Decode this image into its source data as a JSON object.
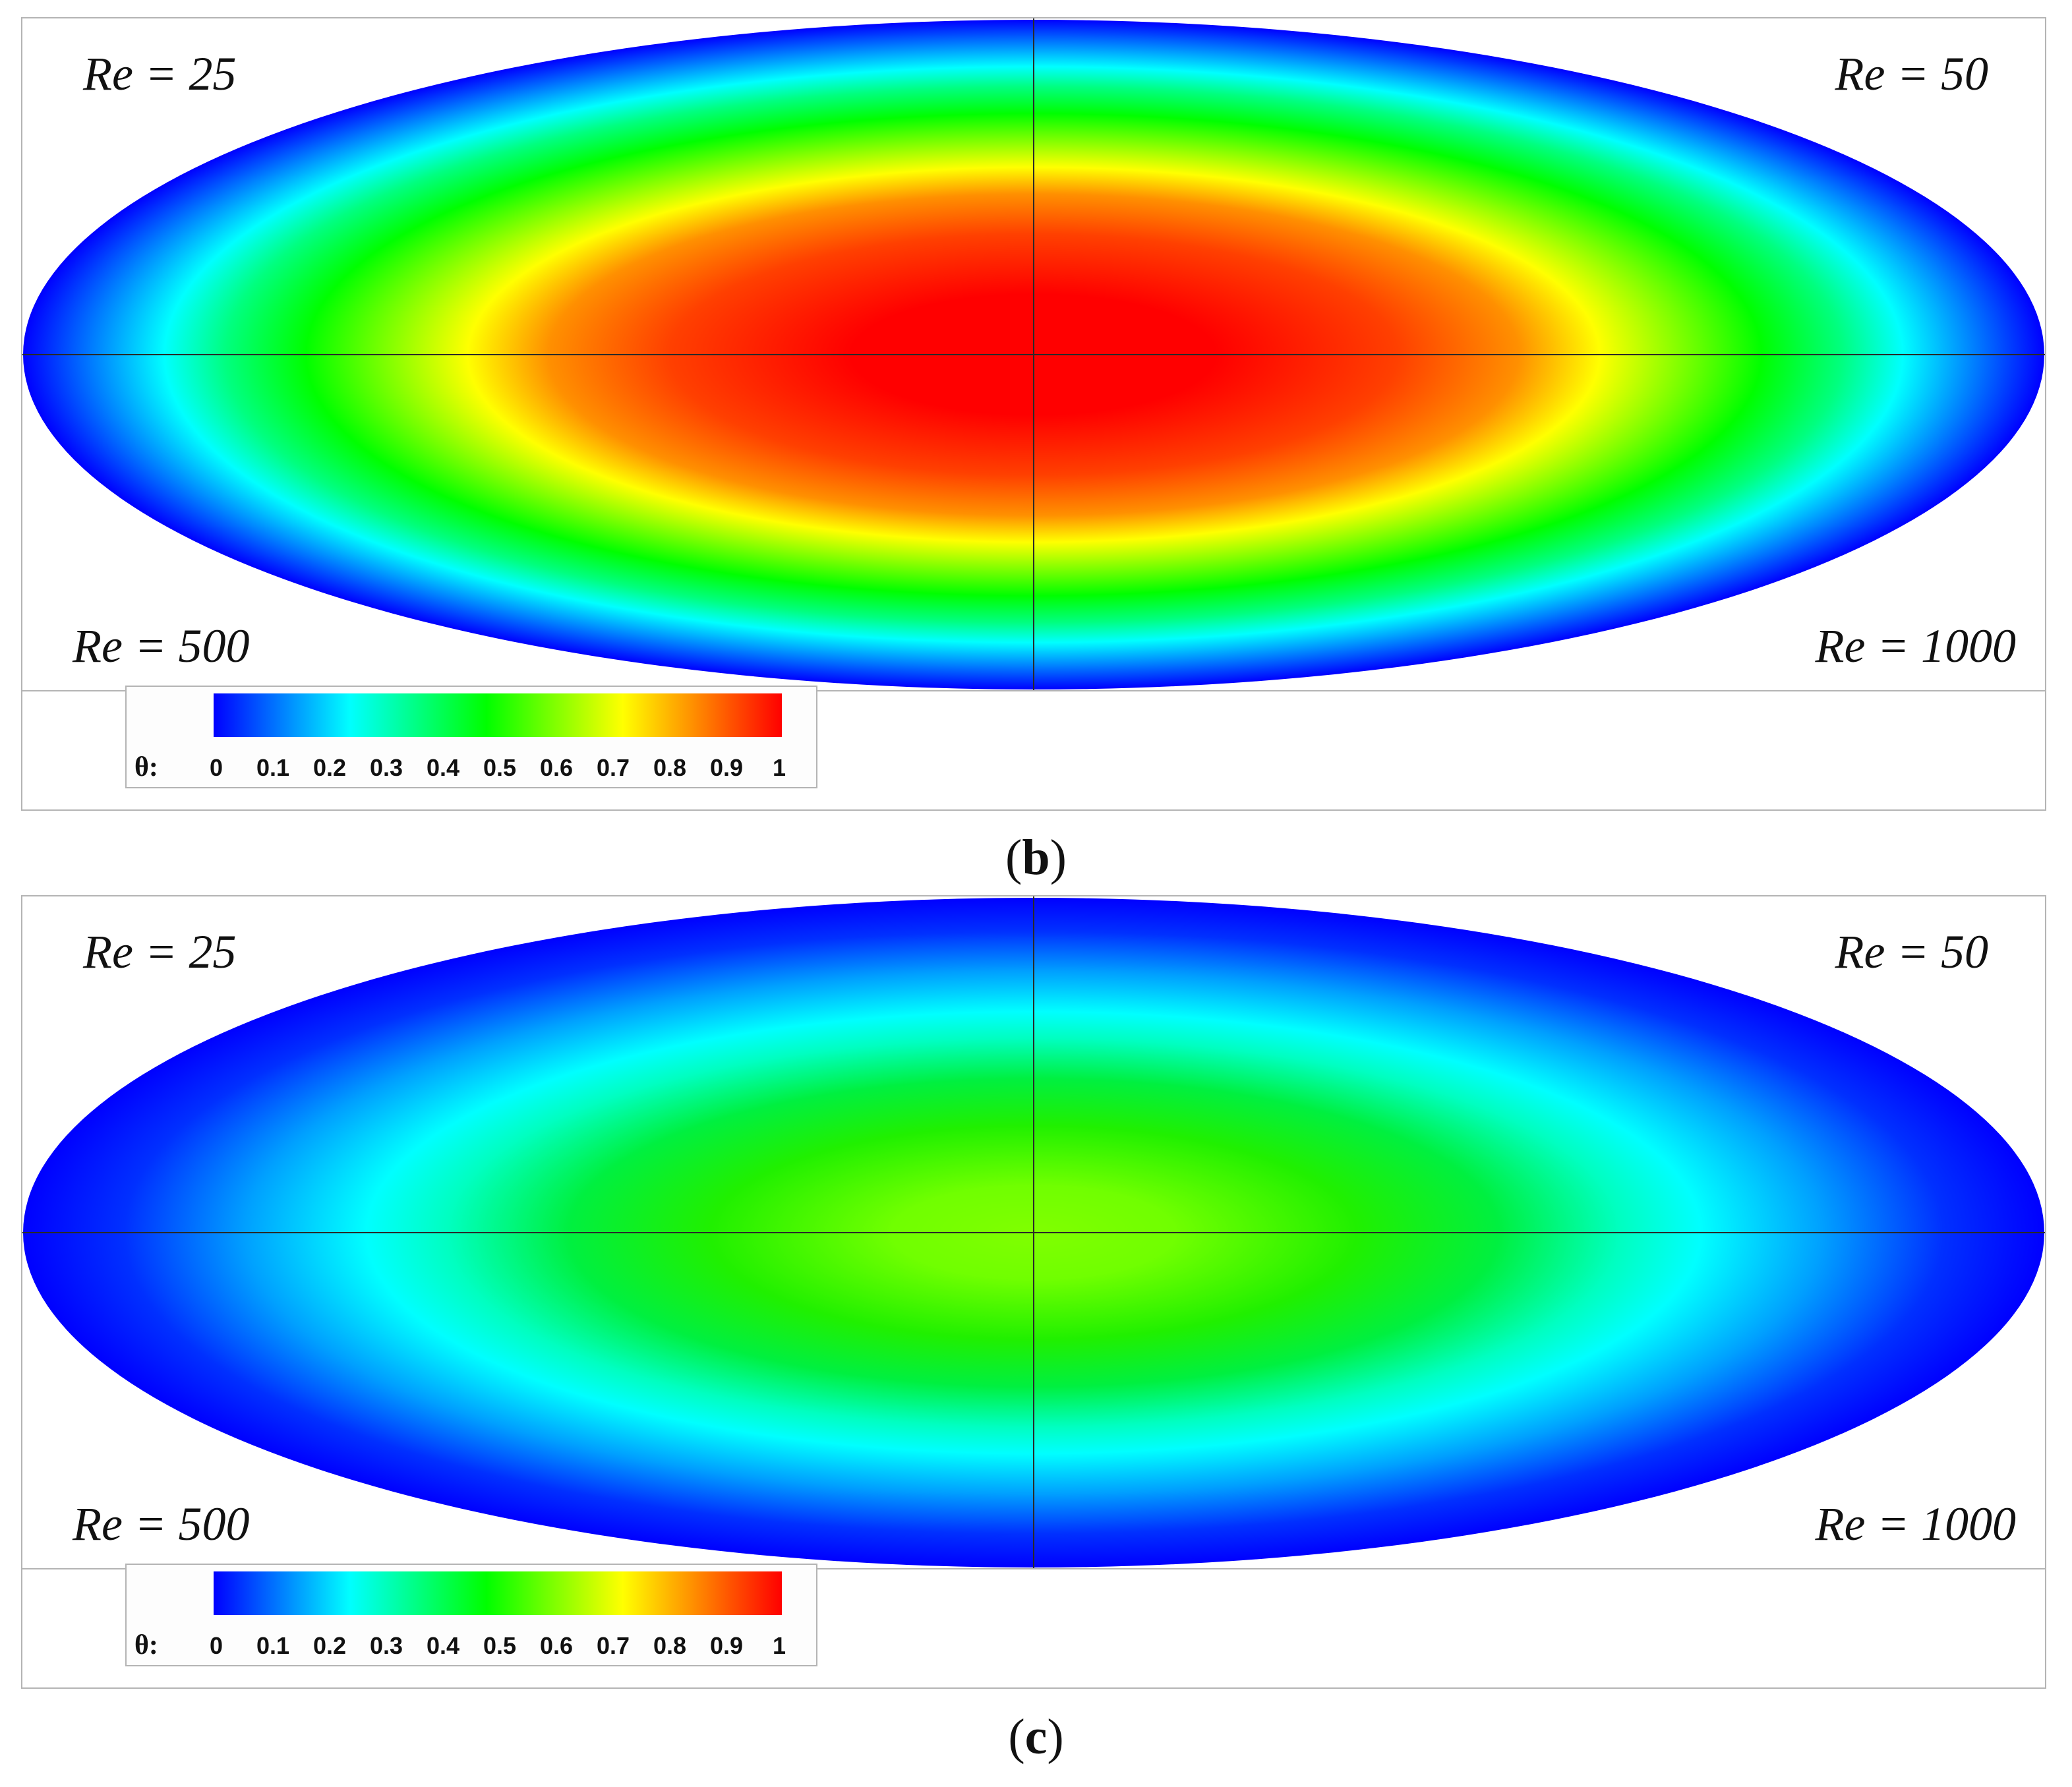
{
  "colors": {
    "colormap": [
      "#0000ff",
      "#0080ff",
      "#00ffff",
      "#00ff80",
      "#00ff00",
      "#80ff00",
      "#ffff00",
      "#ff8000",
      "#ff0000"
    ],
    "background": "#ffffff",
    "frame": "#b4b4b4"
  },
  "panels": [
    {
      "caption_open": "(",
      "caption_letter": "b",
      "caption_close": ")",
      "labels": {
        "top_left": "Re = 25",
        "top_right": "Re = 50",
        "bottom_left": "Re = 500",
        "bottom_right": "Re = 1000"
      },
      "legend": {
        "variable": "θ:",
        "ticks": [
          "0",
          "0.1",
          "0.2",
          "0.3",
          "0.4",
          "0.5",
          "0.6",
          "0.7",
          "0.8",
          "0.9",
          "1"
        ]
      },
      "center_theta": 1.0
    },
    {
      "caption_open": "(",
      "caption_letter": "c",
      "caption_close": ")",
      "labels": {
        "top_left": "Re = 25",
        "top_right": "Re = 50",
        "bottom_left": "Re = 500",
        "bottom_right": "Re = 1000"
      },
      "legend": {
        "variable": "θ:",
        "ticks": [
          "0",
          "0.1",
          "0.2",
          "0.3",
          "0.4",
          "0.5",
          "0.6",
          "0.7",
          "0.8",
          "0.9",
          "1"
        ]
      },
      "center_theta": 0.6
    }
  ]
}
